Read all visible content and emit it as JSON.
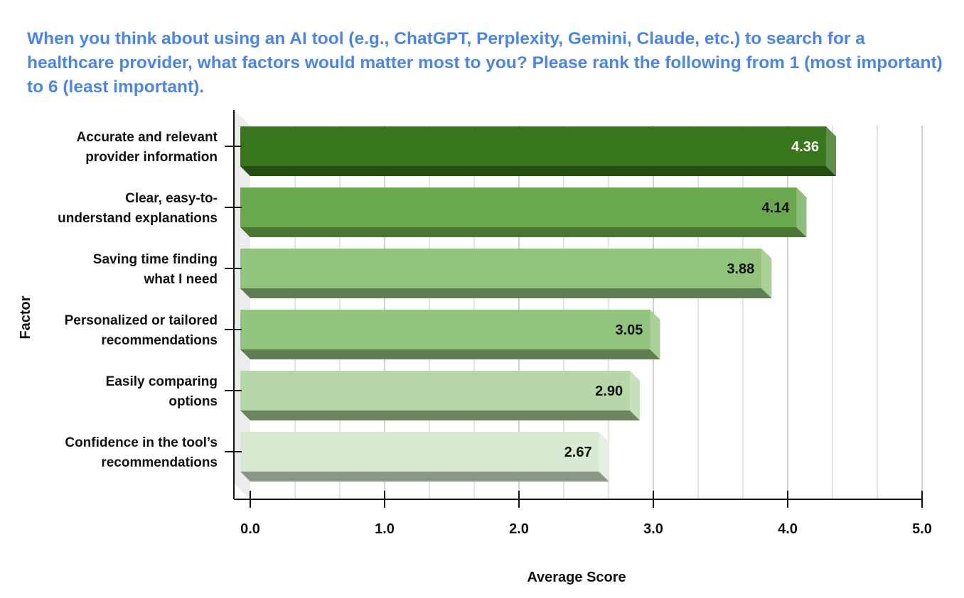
{
  "chart_data": {
    "type": "bar",
    "orientation": "horizontal",
    "style": "3d",
    "title": "When you think about using an AI tool (e.g., ChatGPT, Perplexity, Gemini, Claude, etc.) to search for a healthcare provider, what factors would matter most to you? Please rank the following from 1 (most important) to 6 (least important).",
    "xlabel": "Average Score",
    "ylabel": "Factor",
    "xlim": [
      0,
      5
    ],
    "xticks": [
      "0.0",
      "1.0",
      "2.0",
      "3.0",
      "4.0",
      "5.0"
    ],
    "grid": true,
    "categories": [
      [
        "Accurate and relevant",
        "provider information"
      ],
      [
        "Clear, easy-to-",
        "understand explanations"
      ],
      [
        "Saving time finding",
        "what I need"
      ],
      [
        "Personalized or tailored",
        "recommendations"
      ],
      [
        "Easily comparing",
        "options"
      ],
      [
        "Confidence in the tool’s",
        "recommendations"
      ]
    ],
    "values": [
      4.36,
      4.14,
      3.88,
      3.05,
      2.9,
      2.67
    ],
    "data_labels": [
      "4.36",
      "4.14",
      "3.88",
      "3.05",
      "2.90",
      "2.67"
    ],
    "colors": [
      {
        "front": "#38761d",
        "bottom": "#274e13",
        "side": "#5e8f48",
        "label": "#ffffff"
      },
      {
        "front": "#6aa84f",
        "bottom": "#4a7634",
        "side": "#8ebd7a",
        "label": "#111111"
      },
      {
        "front": "#93c47d",
        "bottom": "#5e7d50",
        "side": "#a9d195",
        "label": "#111111"
      },
      {
        "front": "#93c47d",
        "bottom": "#5e7d50",
        "side": "#a9d195",
        "label": "#111111"
      },
      {
        "front": "#b6d7a8",
        "bottom": "#6b8560",
        "side": "#c6e0bb",
        "label": "#111111"
      },
      {
        "front": "#d9ead3",
        "bottom": "#8a9787",
        "side": "#e3efdf",
        "label": "#111111"
      }
    ],
    "title_color": "#4a86e8"
  }
}
